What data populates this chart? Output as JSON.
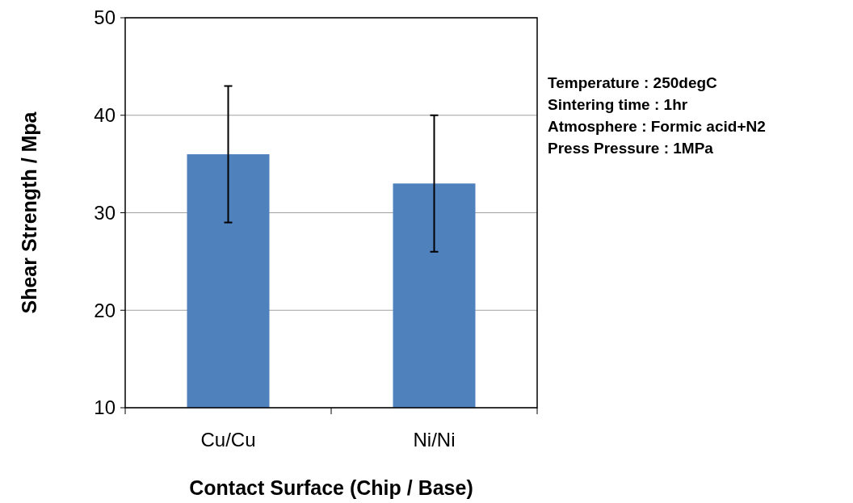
{
  "chart_data": {
    "type": "bar",
    "xlabel": "Contact Surface (Chip / Base)",
    "ylabel": "Shear Strength / Mpa",
    "categories": [
      "Cu/Cu",
      "Ni/Ni"
    ],
    "values": [
      36,
      33
    ],
    "errors": [
      7,
      7
    ],
    "color": "#4f81bd",
    "ylim": [
      10,
      50
    ],
    "yticks": [
      10,
      20,
      30,
      40,
      50
    ],
    "grid": "y",
    "annotations": [
      "Temperature : 250degC",
      "Sintering time : 1hr",
      "Atmosphere : Formic acid+N2",
      "Press Pressure : 1MPa"
    ]
  }
}
